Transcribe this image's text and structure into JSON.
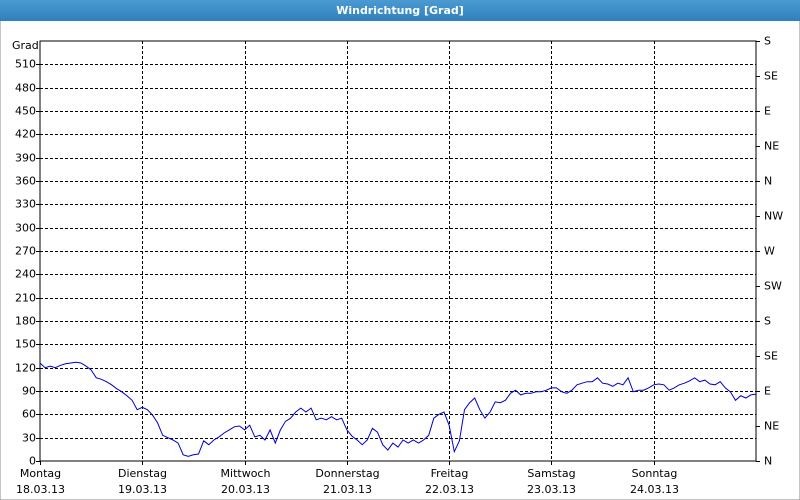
{
  "chart_data": {
    "type": "line",
    "title": "Windrichtung [Grad]",
    "ylabel": "Grad",
    "xlim": [
      0,
      7
    ],
    "xticks": [
      {
        "value": 0,
        "label": "Montag"
      },
      {
        "value": 1,
        "label": "Dienstag"
      },
      {
        "value": 2,
        "label": "Mittwoch"
      },
      {
        "value": 3,
        "label": "Donnerstag"
      },
      {
        "value": 4,
        "label": "Freitag"
      },
      {
        "value": 5,
        "label": "Samstag"
      },
      {
        "value": 6,
        "label": "Sonntag"
      }
    ],
    "xtick_dates": [
      "18.03.13",
      "19.03.13",
      "20.03.13",
      "21.03.13",
      "22.03.13",
      "23.03.13",
      "24.03.13"
    ],
    "ylim": [
      0,
      540
    ],
    "yticks": [
      0,
      30,
      60,
      90,
      120,
      150,
      180,
      210,
      240,
      270,
      300,
      330,
      360,
      390,
      420,
      450,
      480,
      510
    ],
    "y2lim": [
      0,
      540
    ],
    "y2ticks": [
      {
        "value": 0,
        "label": "N"
      },
      {
        "value": 45,
        "label": "NE"
      },
      {
        "value": 90,
        "label": "E"
      },
      {
        "value": 135,
        "label": "SE"
      },
      {
        "value": 180,
        "label": "S"
      },
      {
        "value": 225,
        "label": "SW"
      },
      {
        "value": 270,
        "label": "W"
      },
      {
        "value": 315,
        "label": "NW"
      },
      {
        "value": 360,
        "label": "N"
      },
      {
        "value": 405,
        "label": "NE"
      },
      {
        "value": 450,
        "label": "E"
      },
      {
        "value": 495,
        "label": "SE"
      },
      {
        "value": 540,
        "label": "S"
      }
    ],
    "grid": true,
    "color": "#0000cc",
    "x": [
      0,
      0.05,
      0.1,
      0.15,
      0.2,
      0.25,
      0.3,
      0.35,
      0.4,
      0.45,
      0.5,
      0.55,
      0.6,
      0.65,
      0.7,
      0.75,
      0.8,
      0.85,
      0.9,
      0.95,
      1,
      1.05,
      1.1,
      1.15,
      1.2,
      1.25,
      1.3,
      1.35,
      1.4,
      1.45,
      1.5,
      1.55,
      1.6,
      1.65,
      1.7,
      1.75,
      1.8,
      1.85,
      1.9,
      1.95,
      2,
      2.05,
      2.1,
      2.15,
      2.2,
      2.25,
      2.3,
      2.35,
      2.4,
      2.45,
      2.5,
      2.55,
      2.6,
      2.65,
      2.7,
      2.75,
      2.8,
      2.85,
      2.9,
      2.95,
      3,
      3.05,
      3.1,
      3.15,
      3.2,
      3.25,
      3.3,
      3.35,
      3.4,
      3.45,
      3.5,
      3.55,
      3.6,
      3.65,
      3.7,
      3.75,
      3.8,
      3.85,
      3.9,
      3.95,
      4,
      4.05,
      4.1,
      4.15,
      4.2,
      4.25,
      4.3,
      4.35,
      4.4,
      4.45,
      4.5,
      4.55,
      4.6,
      4.65,
      4.7,
      4.75,
      4.8,
      4.85,
      4.9,
      4.95,
      5,
      5.05,
      5.1,
      5.15,
      5.2,
      5.25,
      5.3,
      5.35,
      5.4,
      5.45,
      5.5,
      5.55,
      5.6,
      5.65,
      5.7,
      5.75,
      5.8,
      5.85,
      5.9,
      5.95,
      6,
      6.05,
      6.1,
      6.15,
      6.2,
      6.25,
      6.3,
      6.35,
      6.4,
      6.45,
      6.5,
      6.55,
      6.6,
      6.65,
      6.7,
      6.75,
      6.8,
      6.85,
      6.9,
      6.95,
      7
    ],
    "values": [
      126,
      120,
      122,
      120,
      123,
      125,
      126,
      127,
      126,
      122,
      117,
      107,
      105,
      102,
      98,
      93,
      89,
      84,
      78,
      66,
      69,
      66,
      59,
      49,
      33,
      30,
      27,
      23,
      8,
      6,
      8,
      9,
      26,
      21,
      27,
      31,
      36,
      40,
      44,
      45,
      40,
      46,
      31,
      33,
      27,
      40,
      23,
      40,
      51,
      55,
      63,
      68,
      63,
      68,
      53,
      55,
      53,
      57,
      53,
      55,
      40,
      32,
      27,
      21,
      27,
      42,
      37,
      21,
      14,
      23,
      18,
      27,
      23,
      27,
      23,
      27,
      33,
      55,
      60,
      63,
      46,
      12,
      26,
      66,
      75,
      81,
      66,
      55,
      63,
      76,
      75,
      78,
      87,
      91,
      85,
      87,
      87,
      89,
      89,
      91,
      94,
      94,
      89,
      87,
      91,
      98,
      100,
      102,
      102,
      107,
      100,
      99,
      96,
      100,
      98,
      107,
      89,
      91,
      91,
      94,
      98,
      99,
      98,
      91,
      94,
      98,
      100,
      103,
      107,
      102,
      104,
      99,
      98,
      102,
      94,
      89,
      78,
      84,
      81,
      85,
      86
    ]
  }
}
